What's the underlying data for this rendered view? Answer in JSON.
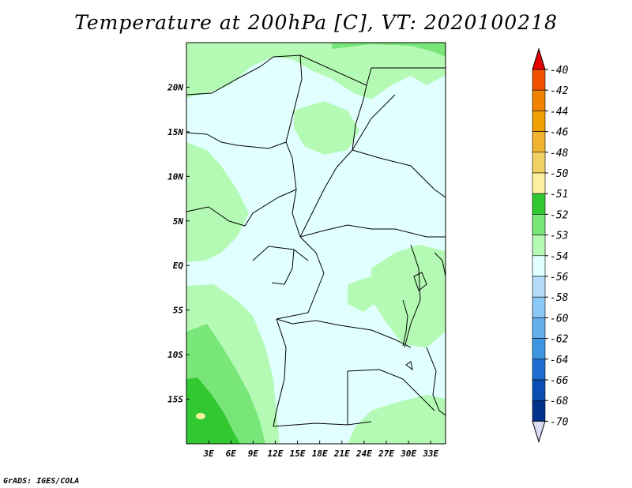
{
  "title": "Temperature at 200hPa [C], VT: 2020100218",
  "credit": "GrADS: IGES/COLA",
  "map": {
    "lat_range": [
      -20,
      25
    ],
    "lon_range": [
      0,
      35
    ],
    "lat_labels": [
      "20N",
      "15N",
      "10N",
      "5N",
      "EQ",
      "5S",
      "10S",
      "15S"
    ],
    "lat_values": [
      20,
      15,
      10,
      5,
      0,
      -5,
      -10,
      -15
    ],
    "lon_labels": [
      "3E",
      "6E",
      "9E",
      "12E",
      "15E",
      "18E",
      "21E",
      "24E",
      "27E",
      "30E",
      "33E"
    ],
    "lon_values": [
      3,
      6,
      9,
      12,
      15,
      18,
      21,
      24,
      27,
      30,
      33
    ]
  },
  "colorbar": {
    "labels": [
      "-40",
      "-42",
      "-44",
      "-46",
      "-48",
      "-50",
      "-51",
      "-52",
      "-53",
      "-54",
      "-56",
      "-58",
      "-60",
      "-62",
      "-64",
      "-66",
      "-68",
      "-70"
    ],
    "colors": [
      "#f00000",
      "#f05000",
      "#f08200",
      "#f0a000",
      "#f0b432",
      "#f0d264",
      "#faf0a0",
      "#32c832",
      "#78e678",
      "#b4fab4",
      "#e1ffff",
      "#b4dcfa",
      "#8cc8f5",
      "#64afeb",
      "#3c96e1",
      "#1e6ed2",
      "#0a50b4",
      "#00328c",
      "#000a64",
      "#dcdcf5"
    ],
    "top_color": "#e60000",
    "bottom_color": "#dcdcf5"
  }
}
